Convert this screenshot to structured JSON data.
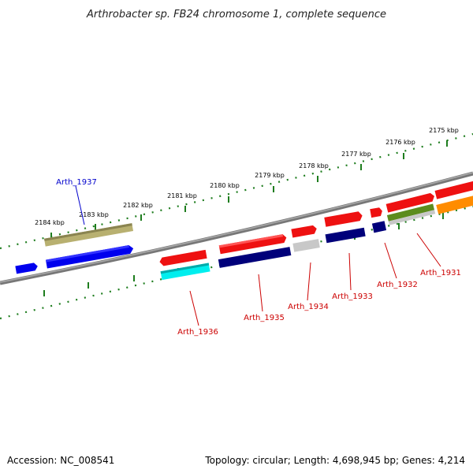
{
  "title": "Arthrobacter sp. FB24 chromosome 1, complete sequence",
  "accession": "Accession: NC_008541",
  "summary": "Topology: circular; Length: 4,698,945 bp; Genes: 4,214",
  "colors": {
    "backbone": "#7a7a7a",
    "tick": "#1e7d1e",
    "red": "#ee1111",
    "navy": "#00007a",
    "blue": "#0000ee",
    "khaki": "#b8b070",
    "cyan": "#00eeee",
    "gray": "#c8c8c8",
    "olive": "#5c8c1e",
    "orange": "#ff8c00",
    "label_red": "#cc0000",
    "label_blue": "#0000cc"
  },
  "ruler": [
    "2175 kbp",
    "2176 kbp",
    "2177 kbp",
    "2178 kbp",
    "2179 kbp",
    "2180 kbp",
    "2181 kbp",
    "2182 kbp",
    "2183 kbp",
    "2184 kbp"
  ],
  "gene_labels": [
    {
      "id": "Arth_1937",
      "color": "label_blue"
    },
    {
      "id": "Arth_1936",
      "color": "label_red"
    },
    {
      "id": "Arth_1935",
      "color": "label_red"
    },
    {
      "id": "Arth_1934",
      "color": "label_red"
    },
    {
      "id": "Arth_1933",
      "color": "label_red"
    },
    {
      "id": "Arth_1932",
      "color": "label_red"
    },
    {
      "id": "Arth_1931",
      "color": "label_red"
    }
  ]
}
